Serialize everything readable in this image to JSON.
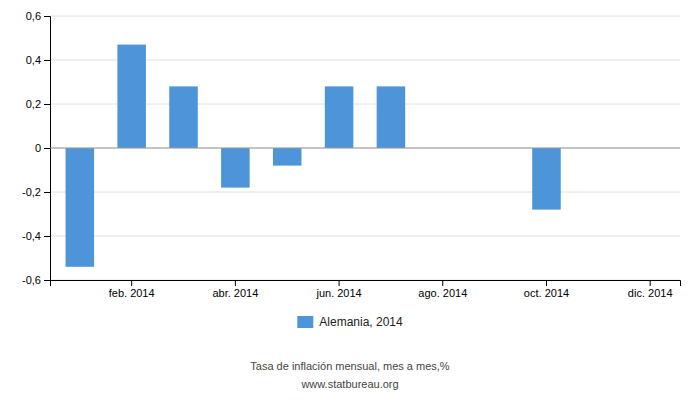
{
  "chart_data": {
    "type": "bar",
    "categories": [
      null,
      "feb. 2014",
      null,
      "abr. 2014",
      null,
      "jun. 2014",
      null,
      "ago. 2014",
      null,
      "oct. 2014",
      null,
      "dic. 2014"
    ],
    "series": [
      {
        "name": "Alemania, 2014",
        "color": "#4d94d8",
        "values": [
          -0.54,
          0.47,
          0.28,
          -0.18,
          -0.08,
          0.28,
          0.28,
          0.0,
          0.0,
          -0.28,
          0.0,
          0.0
        ]
      }
    ],
    "ylim": [
      -0.6,
      0.6
    ],
    "yticks": [
      {
        "value": -0.6,
        "label": "-0,6"
      },
      {
        "value": -0.4,
        "label": "-0,4"
      },
      {
        "value": -0.2,
        "label": "-0,2"
      },
      0,
      {
        "value": 0.2,
        "label": "0,2"
      },
      {
        "value": 0.4,
        "label": "0,4"
      },
      {
        "value": 0.6,
        "label": "0,6"
      }
    ],
    "grid": true,
    "legend": "bottom",
    "annotations": [
      "Tasa de inflación mensual, mes a mes,%",
      "www.statbureau.org"
    ]
  }
}
